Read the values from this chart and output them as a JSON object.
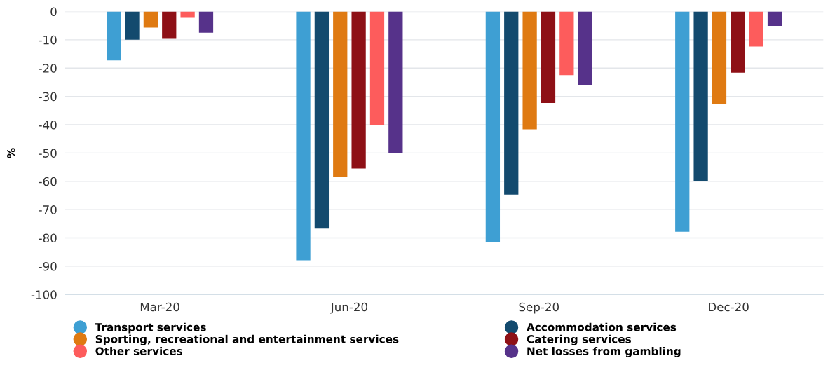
{
  "chart_data": {
    "type": "bar",
    "ylabel": "%",
    "categories": [
      "Mar-20",
      "Jun-20",
      "Sep-20",
      "Dec-20"
    ],
    "series": [
      {
        "name": "Transport services",
        "color": "#3e9fd3",
        "values": [
          -17.3,
          -87.9,
          -81.6,
          -77.8
        ]
      },
      {
        "name": "Accommodation services",
        "color": "#134a6e",
        "values": [
          -10.0,
          -76.7,
          -64.7,
          -60.0
        ]
      },
      {
        "name": "Sporting, recreational and entertainment services",
        "color": "#df7a12",
        "values": [
          -5.7,
          -58.5,
          -41.6,
          -32.7
        ]
      },
      {
        "name": "Catering services",
        "color": "#8e1016",
        "values": [
          -9.4,
          -55.5,
          -32.3,
          -21.6
        ]
      },
      {
        "name": "Other services",
        "color": "#fd5c5c",
        "values": [
          -2.0,
          -40.0,
          -22.5,
          -12.4
        ]
      },
      {
        "name": "Net losses from gambling",
        "color": "#56328a",
        "values": [
          -7.5,
          -49.9,
          -25.9,
          -5.1
        ]
      }
    ],
    "ylim": [
      -100,
      0
    ],
    "yticks": [
      -100,
      -90,
      -80,
      -70,
      -60,
      -50,
      -40,
      -30,
      -20,
      -10,
      0
    ],
    "grid": "y",
    "legend": "bottom left"
  }
}
